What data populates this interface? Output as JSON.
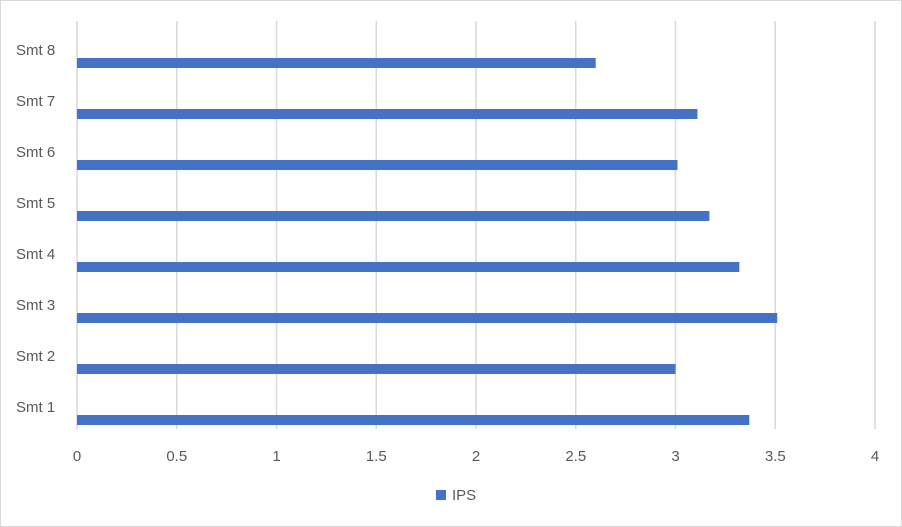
{
  "chart_data": {
    "type": "bar",
    "orientation": "horizontal",
    "categories": [
      "Smt 1",
      "Smt 2",
      "Smt 3",
      "Smt 4",
      "Smt 5",
      "Smt 6",
      "Smt 7",
      "Smt 8"
    ],
    "series": [
      {
        "name": "IPS",
        "color": "#4472c4",
        "values": [
          3.37,
          3.0,
          3.51,
          3.32,
          3.17,
          3.01,
          3.11,
          2.6
        ]
      }
    ],
    "x_ticks": [
      "0",
      "0.5",
      "1",
      "1.5",
      "2",
      "2.5",
      "3",
      "3.5",
      "4"
    ],
    "xlim": [
      0,
      4
    ],
    "grid": "vertical",
    "legend_position": "bottom"
  },
  "colors": {
    "bar": "#4472c4",
    "gridline": "#d9d9d9",
    "axis_text": "#595959",
    "frame_border": "#d9d9d9"
  }
}
